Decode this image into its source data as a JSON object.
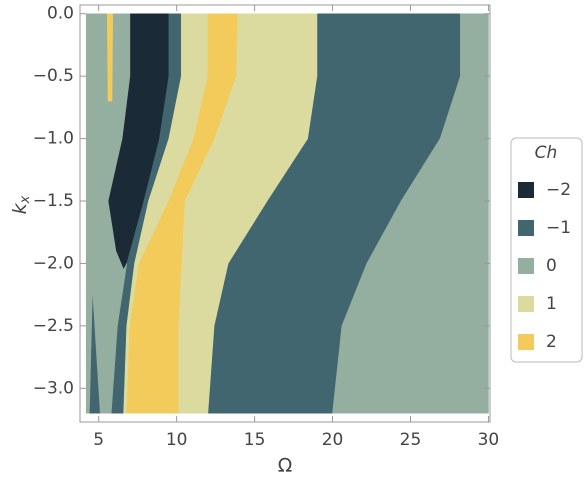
{
  "chart_data": {
    "type": "region",
    "xlabel": "Ω",
    "ylabel": {
      "text": "k",
      "subscript": "x"
    },
    "legend_title": "Ch",
    "legend": "right",
    "xlim": [
      3.8,
      30.1
    ],
    "ylim": [
      -3.27,
      0.07
    ],
    "xticks": [
      5,
      10,
      15,
      20,
      25,
      30
    ],
    "yticks": [
      {
        "value": 0,
        "label": "0.0"
      },
      {
        "value": -0.5,
        "label": "−0.5"
      },
      {
        "value": -1,
        "label": "−1.0"
      },
      {
        "value": -1.5,
        "label": "−1.5"
      },
      {
        "value": -2,
        "label": "−2.0"
      },
      {
        "value": -2.5,
        "label": "−2.5"
      },
      {
        "value": -3,
        "label": "−3.0"
      }
    ],
    "series": [
      {
        "name": "−2",
        "color": "#1b2a37",
        "regions": [
          {
            "x": [
              7.0,
              7.0,
              6.5,
              5.6,
              6.1,
              6.6,
              6.8,
              7.9,
              8.9,
              9.5,
              9.5
            ],
            "y": [
              0,
              -0.5,
              -1,
              -1.5,
              -1.9,
              -2.05,
              -2,
              -1.5,
              -1,
              -0.5,
              0
            ]
          }
        ]
      },
      {
        "name": "−1",
        "color": "#416670",
        "regions": [
          {
            "x": [
              19.0,
              19.0,
              18.4,
              15.8,
              13.3,
              12.4,
              12.0,
              20.0,
              20.6,
              22.2,
              24.4,
              26.9,
              28.2,
              28.2
            ],
            "y": [
              0,
              -0.5,
              -1,
              -1.5,
              -2,
              -2.5,
              -3.2,
              -3.2,
              -2.5,
              -2,
              -1.5,
              -1,
              -0.5,
              0
            ]
          },
          {
            "x": [
              9.5,
              9.5,
              8.9,
              7.9,
              6.8,
              6.2,
              5.8,
              6.6,
              6.8,
              7.3,
              8.2,
              9.5,
              10.3,
              10.3
            ],
            "y": [
              0,
              -0.5,
              -1,
              -1.5,
              -2,
              -2.5,
              -3.2,
              -3.2,
              -2.5,
              -2,
              -1.5,
              -1,
              -0.5,
              0
            ]
          },
          {
            "x": [
              4.4,
              4.6,
              5.1
            ],
            "y": [
              -3.2,
              -2.2,
              -3.2
            ]
          }
        ]
      },
      {
        "name": "0",
        "color": "#94ae9f",
        "regions": [
          {
            "x": [
              28.2,
              30,
              30,
              20.0,
              20.6,
              22.2,
              24.4,
              26.9,
              28.2
            ],
            "y": [
              0,
              0,
              -3.2,
              -3.2,
              -2.5,
              -2,
              -1.5,
              -1,
              -0.5
            ]
          },
          {
            "x": [
              4.2,
              7.0,
              7.0,
              6.5,
              5.6,
              6.1,
              6.6,
              6.8,
              6.2,
              5.8,
              5.1,
              4.6,
              4.4,
              4.2
            ],
            "y": [
              0,
              0,
              -0.5,
              -1,
              -1.5,
              -1.9,
              -2.05,
              -2,
              -2.5,
              -3.2,
              -3.2,
              -2.2,
              -3.2,
              -3.2
            ]
          }
        ]
      },
      {
        "name": "1",
        "color": "#dcdb9f",
        "regions": [
          {
            "x": [
              13.9,
              13.8,
              12.4,
              10.5,
              10.3,
              10.1,
              10.1,
              12.0,
              12.4,
              13.3,
              15.8,
              18.4,
              19.0,
              19.0
            ],
            "y": [
              0,
              -0.5,
              -1,
              -1.5,
              -2,
              -2.5,
              -3.2,
              -3.2,
              -2.5,
              -2,
              -1.5,
              -1,
              -0.5,
              0
            ]
          },
          {
            "x": [
              10.3,
              10.3,
              9.5,
              8.2,
              7.3,
              6.8,
              6.6,
              6.8,
              7.0,
              7.6,
              9.5,
              11.1,
              12.0,
              12.0
            ],
            "y": [
              0,
              -0.5,
              -1,
              -1.5,
              -2,
              -2.5,
              -3.2,
              -3.2,
              -2.5,
              -2,
              -1.5,
              -1,
              -0.5,
              0
            ]
          }
        ]
      },
      {
        "name": "2",
        "color": "#f3cb5b",
        "regions": [
          {
            "x": [
              12.0,
              12.0,
              11.1,
              9.5,
              7.6,
              7.0,
              6.8,
              10.1,
              10.1,
              10.3,
              10.5,
              12.4,
              13.8,
              13.9
            ],
            "y": [
              0,
              -0.5,
              -1,
              -1.5,
              -2,
              -2.5,
              -3.2,
              -3.2,
              -2.5,
              -2,
              -1.5,
              -1,
              -0.5,
              0
            ]
          },
          {
            "x": [
              5.55,
              5.9,
              5.85,
              5.6
            ],
            "y": [
              0,
              0,
              -0.7,
              -0.7
            ]
          }
        ]
      }
    ]
  }
}
